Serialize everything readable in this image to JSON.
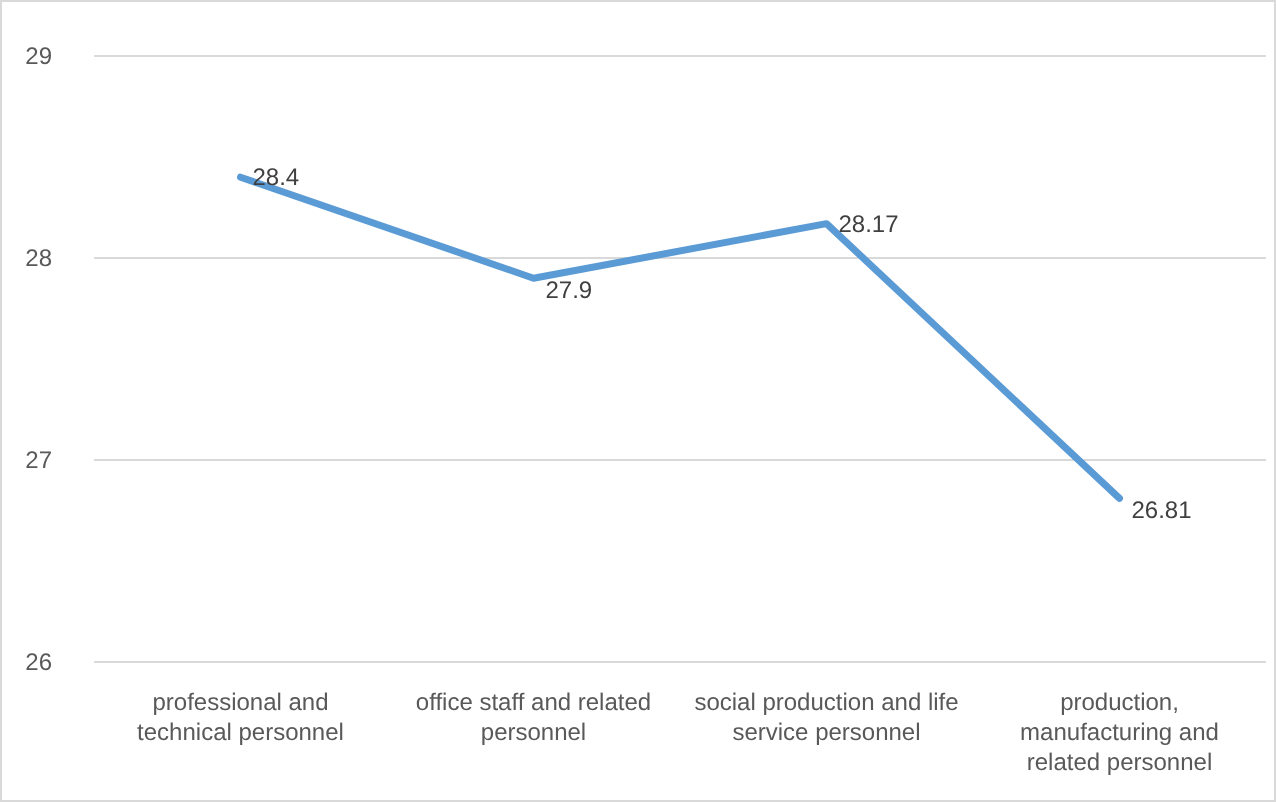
{
  "chart_data": {
    "type": "line",
    "categories": [
      "professional and technical personnel",
      "office staff and related personnel",
      "social production and life service personnel",
      "production, manufacturing and related personnel"
    ],
    "series": [
      {
        "color": "#5b9bd5",
        "values": [
          28.4,
          27.9,
          28.17,
          26.81
        ]
      }
    ],
    "ylim": [
      26,
      29
    ],
    "yticks": [
      26,
      27,
      28,
      29
    ],
    "grid": "y",
    "data_labels": true,
    "line_style": "solid"
  }
}
